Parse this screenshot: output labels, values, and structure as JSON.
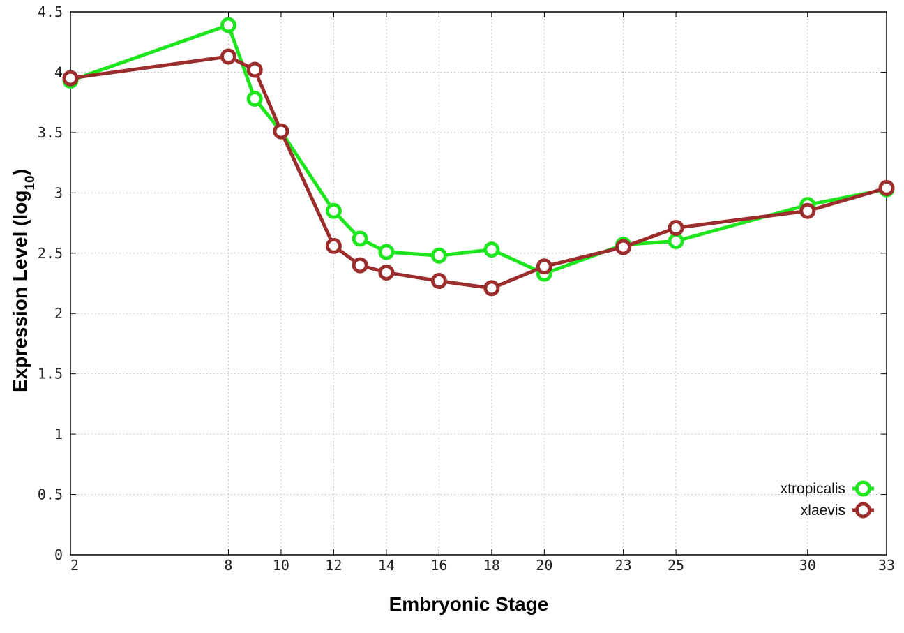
{
  "chart_data": {
    "type": "line",
    "title": "",
    "xlabel": "Embryonic Stage",
    "ylabel_main": "Expression Level (log",
    "ylabel_sub": "10",
    "ylabel_close": ")",
    "ylim": [
      0,
      4.5
    ],
    "grid": true,
    "legend_position": "bottom-right",
    "x_ticks": [
      {
        "value": 2,
        "label": "2"
      },
      {
        "value": 8,
        "label": "8"
      },
      {
        "value": 10,
        "label": "10"
      },
      {
        "value": 12,
        "label": "12"
      },
      {
        "value": 14,
        "label": "14"
      },
      {
        "value": 16,
        "label": "16"
      },
      {
        "value": 18,
        "label": "18"
      },
      {
        "value": 20,
        "label": "20"
      },
      {
        "value": 23,
        "label": "23"
      },
      {
        "value": 25,
        "label": "25"
      },
      {
        "value": 30,
        "label": "30"
      },
      {
        "value": 33,
        "label": "33"
      }
    ],
    "y_ticks": [
      {
        "value": 0,
        "label": "0"
      },
      {
        "value": 0.5,
        "label": "0.5"
      },
      {
        "value": 1,
        "label": "1"
      },
      {
        "value": 1.5,
        "label": "1.5"
      },
      {
        "value": 2,
        "label": "2"
      },
      {
        "value": 2.5,
        "label": "2.5"
      },
      {
        "value": 3,
        "label": "3"
      },
      {
        "value": 3.5,
        "label": "3.5"
      },
      {
        "value": 4,
        "label": "4"
      },
      {
        "value": 4.5,
        "label": "4.5"
      }
    ],
    "x": [
      2,
      8,
      9,
      10,
      12,
      13,
      14,
      16,
      18,
      20,
      23,
      25,
      30,
      33
    ],
    "series": [
      {
        "name": "xtropicalis",
        "color": "#1ee61e",
        "values": [
          3.93,
          4.39,
          3.78,
          3.51,
          2.85,
          2.62,
          2.51,
          2.48,
          2.53,
          2.33,
          2.57,
          2.6,
          2.9,
          3.03
        ]
      },
      {
        "name": "xlaevis",
        "color": "#9b2d2d",
        "values": [
          3.95,
          4.13,
          4.02,
          3.51,
          2.56,
          2.4,
          2.34,
          2.27,
          2.21,
          2.39,
          2.55,
          2.71,
          2.85,
          3.04
        ]
      }
    ]
  }
}
